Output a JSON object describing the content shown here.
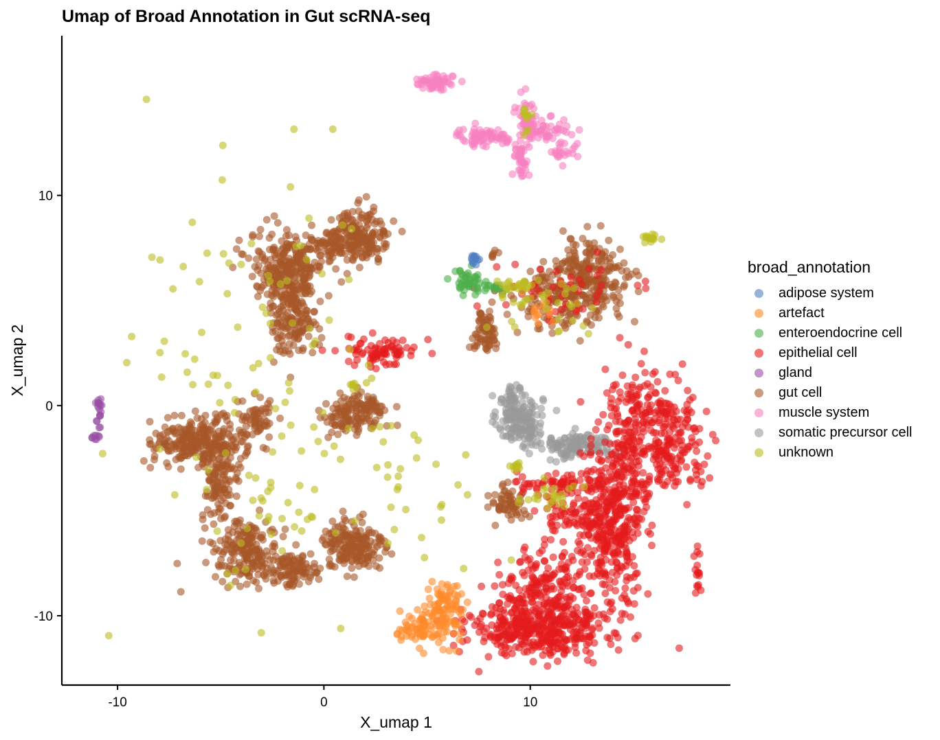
{
  "chart_data": {
    "type": "scatter",
    "title": "Umap of Broad Annotation in Gut scRNA-seq",
    "xlabel": "X_umap 1",
    "ylabel": "X_umap 2",
    "xlim": [
      -12.7,
      19.7
    ],
    "ylim": [
      -13.3,
      17.6
    ],
    "x_ticks": [
      -10,
      0,
      10
    ],
    "y_ticks": [
      -10,
      0,
      10
    ],
    "grid": false,
    "legend_title": "broad_annotation",
    "legend_position": "right",
    "point_opacity": 0.6,
    "series": [
      {
        "name": "adipose system",
        "color": "#4E7FC2",
        "clusters": [
          {
            "x": 7.3,
            "y": 6.9,
            "sx": 0.12,
            "sy": 0.15,
            "n": 14
          }
        ]
      },
      {
        "name": "artefact",
        "color": "#FF8A2A",
        "clusters": [
          {
            "x": 4.6,
            "y": -10.6,
            "sx": 0.6,
            "sy": 0.35,
            "n": 60
          },
          {
            "x": 5.8,
            "y": -10.0,
            "sx": 0.5,
            "sy": 0.7,
            "n": 70
          },
          {
            "x": 6.0,
            "y": -9.3,
            "sx": 0.4,
            "sy": 0.3,
            "n": 30
          },
          {
            "x": 10.5,
            "y": 4.3,
            "sx": 0.3,
            "sy": 0.3,
            "n": 12
          }
        ]
      },
      {
        "name": "enteroendocrine cell",
        "color": "#4DAF4A",
        "clusters": [
          {
            "x": 7.0,
            "y": 5.8,
            "sx": 0.35,
            "sy": 0.35,
            "n": 45
          },
          {
            "x": 8.3,
            "y": 5.6,
            "sx": 0.4,
            "sy": 0.1,
            "n": 16
          }
        ]
      },
      {
        "name": "epithelial cell",
        "color": "#E41A1C",
        "clusters": [
          {
            "x": 2.9,
            "y": 2.6,
            "sx": 0.9,
            "sy": 0.35,
            "n": 80
          },
          {
            "x": 10.5,
            "y": -10.6,
            "sx": 1.8,
            "sy": 0.7,
            "n": 380
          },
          {
            "x": 10.4,
            "y": -9.0,
            "sx": 1.0,
            "sy": 1.1,
            "n": 220
          },
          {
            "x": 14.0,
            "y": -5.5,
            "sx": 0.8,
            "sy": 1.6,
            "n": 380
          },
          {
            "x": 15.0,
            "y": -1.2,
            "sx": 0.9,
            "sy": 1.6,
            "n": 220
          },
          {
            "x": 17.0,
            "y": -1.6,
            "sx": 0.9,
            "sy": 1.2,
            "n": 170
          },
          {
            "x": 11.0,
            "y": -3.7,
            "sx": 1.3,
            "sy": 0.2,
            "n": 60
          },
          {
            "x": 12.0,
            "y": -5.2,
            "sx": 0.8,
            "sy": 0.6,
            "n": 60
          },
          {
            "x": 18.1,
            "y": -8.0,
            "sx": 0.12,
            "sy": 0.6,
            "n": 16
          },
          {
            "x": 11.0,
            "y": 5.6,
            "sx": 1.8,
            "sy": 0.8,
            "n": 50
          }
        ]
      },
      {
        "name": "gland",
        "color": "#984EA3",
        "clusters": [
          {
            "x": -10.9,
            "y": -0.4,
            "sx": 0.08,
            "sy": 0.35,
            "n": 18
          },
          {
            "x": -11.05,
            "y": -1.5,
            "sx": 0.1,
            "sy": 0.1,
            "n": 8
          }
        ]
      },
      {
        "name": "gut cell",
        "color": "#A65628",
        "clusters": [
          {
            "x": -1.8,
            "y": 6.6,
            "sx": 0.9,
            "sy": 0.8,
            "n": 230
          },
          {
            "x": -1.5,
            "y": 4.3,
            "sx": 0.6,
            "sy": 0.9,
            "n": 170
          },
          {
            "x": 1.8,
            "y": 8.1,
            "sx": 0.7,
            "sy": 0.65,
            "n": 170
          },
          {
            "x": 0.3,
            "y": 7.6,
            "sx": 0.7,
            "sy": 0.4,
            "n": 80
          },
          {
            "x": -6.0,
            "y": -1.7,
            "sx": 1.1,
            "sy": 0.55,
            "n": 270
          },
          {
            "x": -3.3,
            "y": -0.6,
            "sx": 0.45,
            "sy": 0.5,
            "n": 55
          },
          {
            "x": -5.0,
            "y": -3.8,
            "sx": 0.45,
            "sy": 1.0,
            "n": 110
          },
          {
            "x": -3.8,
            "y": -6.9,
            "sx": 0.8,
            "sy": 0.7,
            "n": 180
          },
          {
            "x": -1.6,
            "y": -7.8,
            "sx": 0.8,
            "sy": 0.4,
            "n": 110
          },
          {
            "x": 1.4,
            "y": -6.7,
            "sx": 0.8,
            "sy": 0.65,
            "n": 180
          },
          {
            "x": 1.7,
            "y": -0.3,
            "sx": 0.7,
            "sy": 0.55,
            "n": 110
          },
          {
            "x": 0.7,
            "y": -0.7,
            "sx": 0.35,
            "sy": 0.35,
            "n": 30
          },
          {
            "x": 7.8,
            "y": 3.5,
            "sx": 0.35,
            "sy": 0.55,
            "n": 70
          },
          {
            "x": 12.9,
            "y": 6.0,
            "sx": 1.0,
            "sy": 0.9,
            "n": 230
          },
          {
            "x": 11.2,
            "y": 5.2,
            "sx": 1.0,
            "sy": 0.8,
            "n": 110
          },
          {
            "x": 8.9,
            "y": -4.6,
            "sx": 0.45,
            "sy": 0.45,
            "n": 60
          },
          {
            "x": 8.3,
            "y": 7.2,
            "sx": 0.12,
            "sy": 0.12,
            "n": 6
          }
        ]
      },
      {
        "name": "muscle system",
        "color": "#F781BF",
        "clusters": [
          {
            "x": 5.3,
            "y": 15.4,
            "sx": 0.45,
            "sy": 0.2,
            "n": 55
          },
          {
            "x": 7.8,
            "y": 12.8,
            "sx": 0.7,
            "sy": 0.2,
            "n": 70
          },
          {
            "x": 9.8,
            "y": 13.6,
            "sx": 0.2,
            "sy": 0.6,
            "n": 50
          },
          {
            "x": 9.6,
            "y": 11.7,
            "sx": 0.2,
            "sy": 0.4,
            "n": 35
          },
          {
            "x": 11.0,
            "y": 13.1,
            "sx": 0.6,
            "sy": 0.35,
            "n": 45
          },
          {
            "x": 11.6,
            "y": 12.0,
            "sx": 0.3,
            "sy": 0.2,
            "n": 18
          }
        ]
      },
      {
        "name": "somatic precursor cell",
        "color": "#999999",
        "clusters": [
          {
            "x": 9.5,
            "y": -0.7,
            "sx": 0.55,
            "sy": 0.6,
            "n": 150
          },
          {
            "x": 12.3,
            "y": -1.9,
            "sx": 0.9,
            "sy": 0.3,
            "n": 130
          },
          {
            "x": 9.1,
            "y": 0.4,
            "sx": 0.2,
            "sy": 0.3,
            "n": 30
          }
        ]
      },
      {
        "name": "unknown",
        "color": "#BCBD22",
        "clusters": [
          {
            "x": 15.8,
            "y": 8.0,
            "sx": 0.2,
            "sy": 0.12,
            "n": 14
          },
          {
            "x": 9.4,
            "y": 5.7,
            "sx": 0.4,
            "sy": 0.2,
            "n": 25
          },
          {
            "x": 10.8,
            "y": -4.3,
            "sx": 0.9,
            "sy": 0.3,
            "n": 25
          },
          {
            "x": 9.3,
            "y": -2.9,
            "sx": 0.2,
            "sy": 0.1,
            "n": 10
          },
          {
            "x": 9.8,
            "y": 13.8,
            "sx": 0.1,
            "sy": 0.4,
            "n": 12
          },
          {
            "x": 1.3,
            "y": 1.0,
            "sx": 0.2,
            "sy": 0.1,
            "n": 6
          },
          {
            "x": -2.0,
            "y": 2.0,
            "sx": 3.5,
            "sy": 5.0,
            "n": 90
          },
          {
            "x": 0.0,
            "y": -5.0,
            "sx": 4.0,
            "sy": 2.5,
            "n": 60
          },
          {
            "x": 11.0,
            "y": 5.0,
            "sx": 1.3,
            "sy": 0.8,
            "n": 30
          }
        ]
      }
    ]
  }
}
